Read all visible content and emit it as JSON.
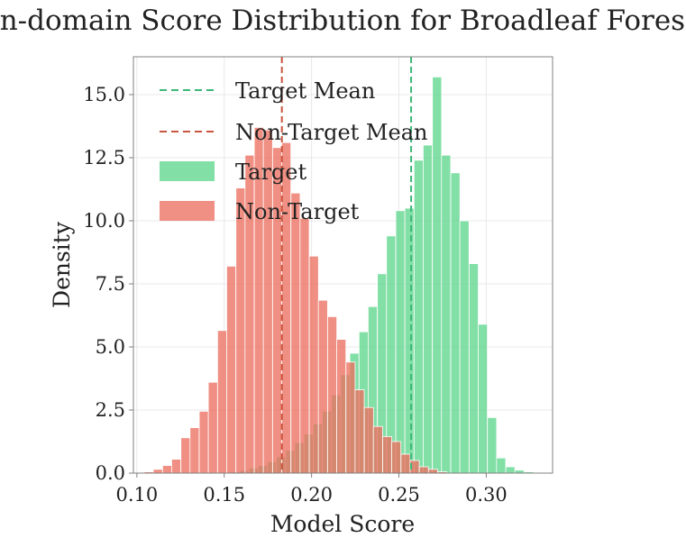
{
  "chart_data": {
    "type": "bar",
    "title": "In-domain Score Distribution for Broadleaf Forest",
    "xlabel": "Model Score",
    "ylabel": "Density",
    "xlim": [
      0.098,
      0.338
    ],
    "ylim": [
      0,
      16.5
    ],
    "xticks": [
      "0.10",
      "0.15",
      "0.20",
      "0.25",
      "0.30"
    ],
    "xtick_values": [
      0.1,
      0.15,
      0.2,
      0.25,
      0.3
    ],
    "yticks": [
      "0.0",
      "2.5",
      "5.0",
      "7.5",
      "10.0",
      "12.5",
      "15.0"
    ],
    "ytick_values": [
      0,
      2.5,
      5,
      7.5,
      10,
      12.5,
      15
    ],
    "grid": true,
    "legend_position": "top-left",
    "legend": [
      {
        "label": "Target Mean",
        "kind": "dashed-line",
        "color": "#3cb878"
      },
      {
        "label": "Non-Target Mean",
        "kind": "dashed-line",
        "color": "#c9553f"
      },
      {
        "label": "Target",
        "kind": "patch",
        "color": "#5fd68d"
      },
      {
        "label": "Non-Target",
        "kind": "patch",
        "color": "#ec6f60"
      }
    ],
    "bin_width": 0.00525,
    "series": [
      {
        "name": "Target",
        "color": "#5fd68d",
        "opacity": 0.78,
        "bin_starts": [
          0.1537,
          0.1589,
          0.1642,
          0.1694,
          0.1747,
          0.1799,
          0.1852,
          0.1904,
          0.1957,
          0.2009,
          0.2062,
          0.2114,
          0.2167,
          0.2219,
          0.2272,
          0.2324,
          0.2377,
          0.2429,
          0.2482,
          0.2534,
          0.2587,
          0.2639,
          0.2692,
          0.2744,
          0.2797,
          0.2849,
          0.2902,
          0.2954,
          0.3007,
          0.3059,
          0.3112,
          0.3164,
          0.3217
        ],
        "values": [
          0.05,
          0.1,
          0.2,
          0.3,
          0.45,
          0.65,
          0.9,
          1.2,
          1.55,
          1.95,
          2.45,
          3.1,
          3.9,
          4.75,
          5.6,
          6.6,
          7.9,
          9.4,
          10.4,
          10.5,
          12.4,
          13.0,
          15.7,
          12.6,
          11.9,
          10.0,
          8.3,
          5.9,
          2.2,
          0.6,
          0.25,
          0.12,
          0.05
        ]
      },
      {
        "name": "Non-Target",
        "color": "#ec6f60",
        "opacity": 0.78,
        "bin_starts": [
          0.1042,
          0.1094,
          0.1147,
          0.1199,
          0.1252,
          0.1304,
          0.1357,
          0.1409,
          0.1462,
          0.1514,
          0.1567,
          0.1619,
          0.1672,
          0.1724,
          0.1777,
          0.1829,
          0.1882,
          0.1934,
          0.1987,
          0.2039,
          0.2092,
          0.2144,
          0.2197,
          0.2249,
          0.2302,
          0.2354,
          0.2407,
          0.2459,
          0.2512,
          0.2564,
          0.2617,
          0.2669,
          0.2722
        ],
        "values": [
          0.05,
          0.15,
          0.3,
          0.55,
          1.4,
          1.8,
          2.45,
          3.6,
          5.65,
          8.2,
          11.3,
          12.6,
          13.7,
          13.6,
          12.9,
          13.1,
          11.1,
          10.1,
          8.6,
          6.85,
          6.2,
          5.3,
          4.4,
          3.3,
          2.6,
          1.85,
          1.45,
          1.25,
          0.75,
          0.5,
          0.25,
          0.15,
          0.05
        ]
      }
    ],
    "reference_lines": [
      {
        "name": "Target Mean",
        "x": 0.257,
        "color": "#3cb878",
        "style": "dashed"
      },
      {
        "name": "Non-Target Mean",
        "x": 0.183,
        "color": "#c9553f",
        "style": "dashed"
      }
    ]
  }
}
